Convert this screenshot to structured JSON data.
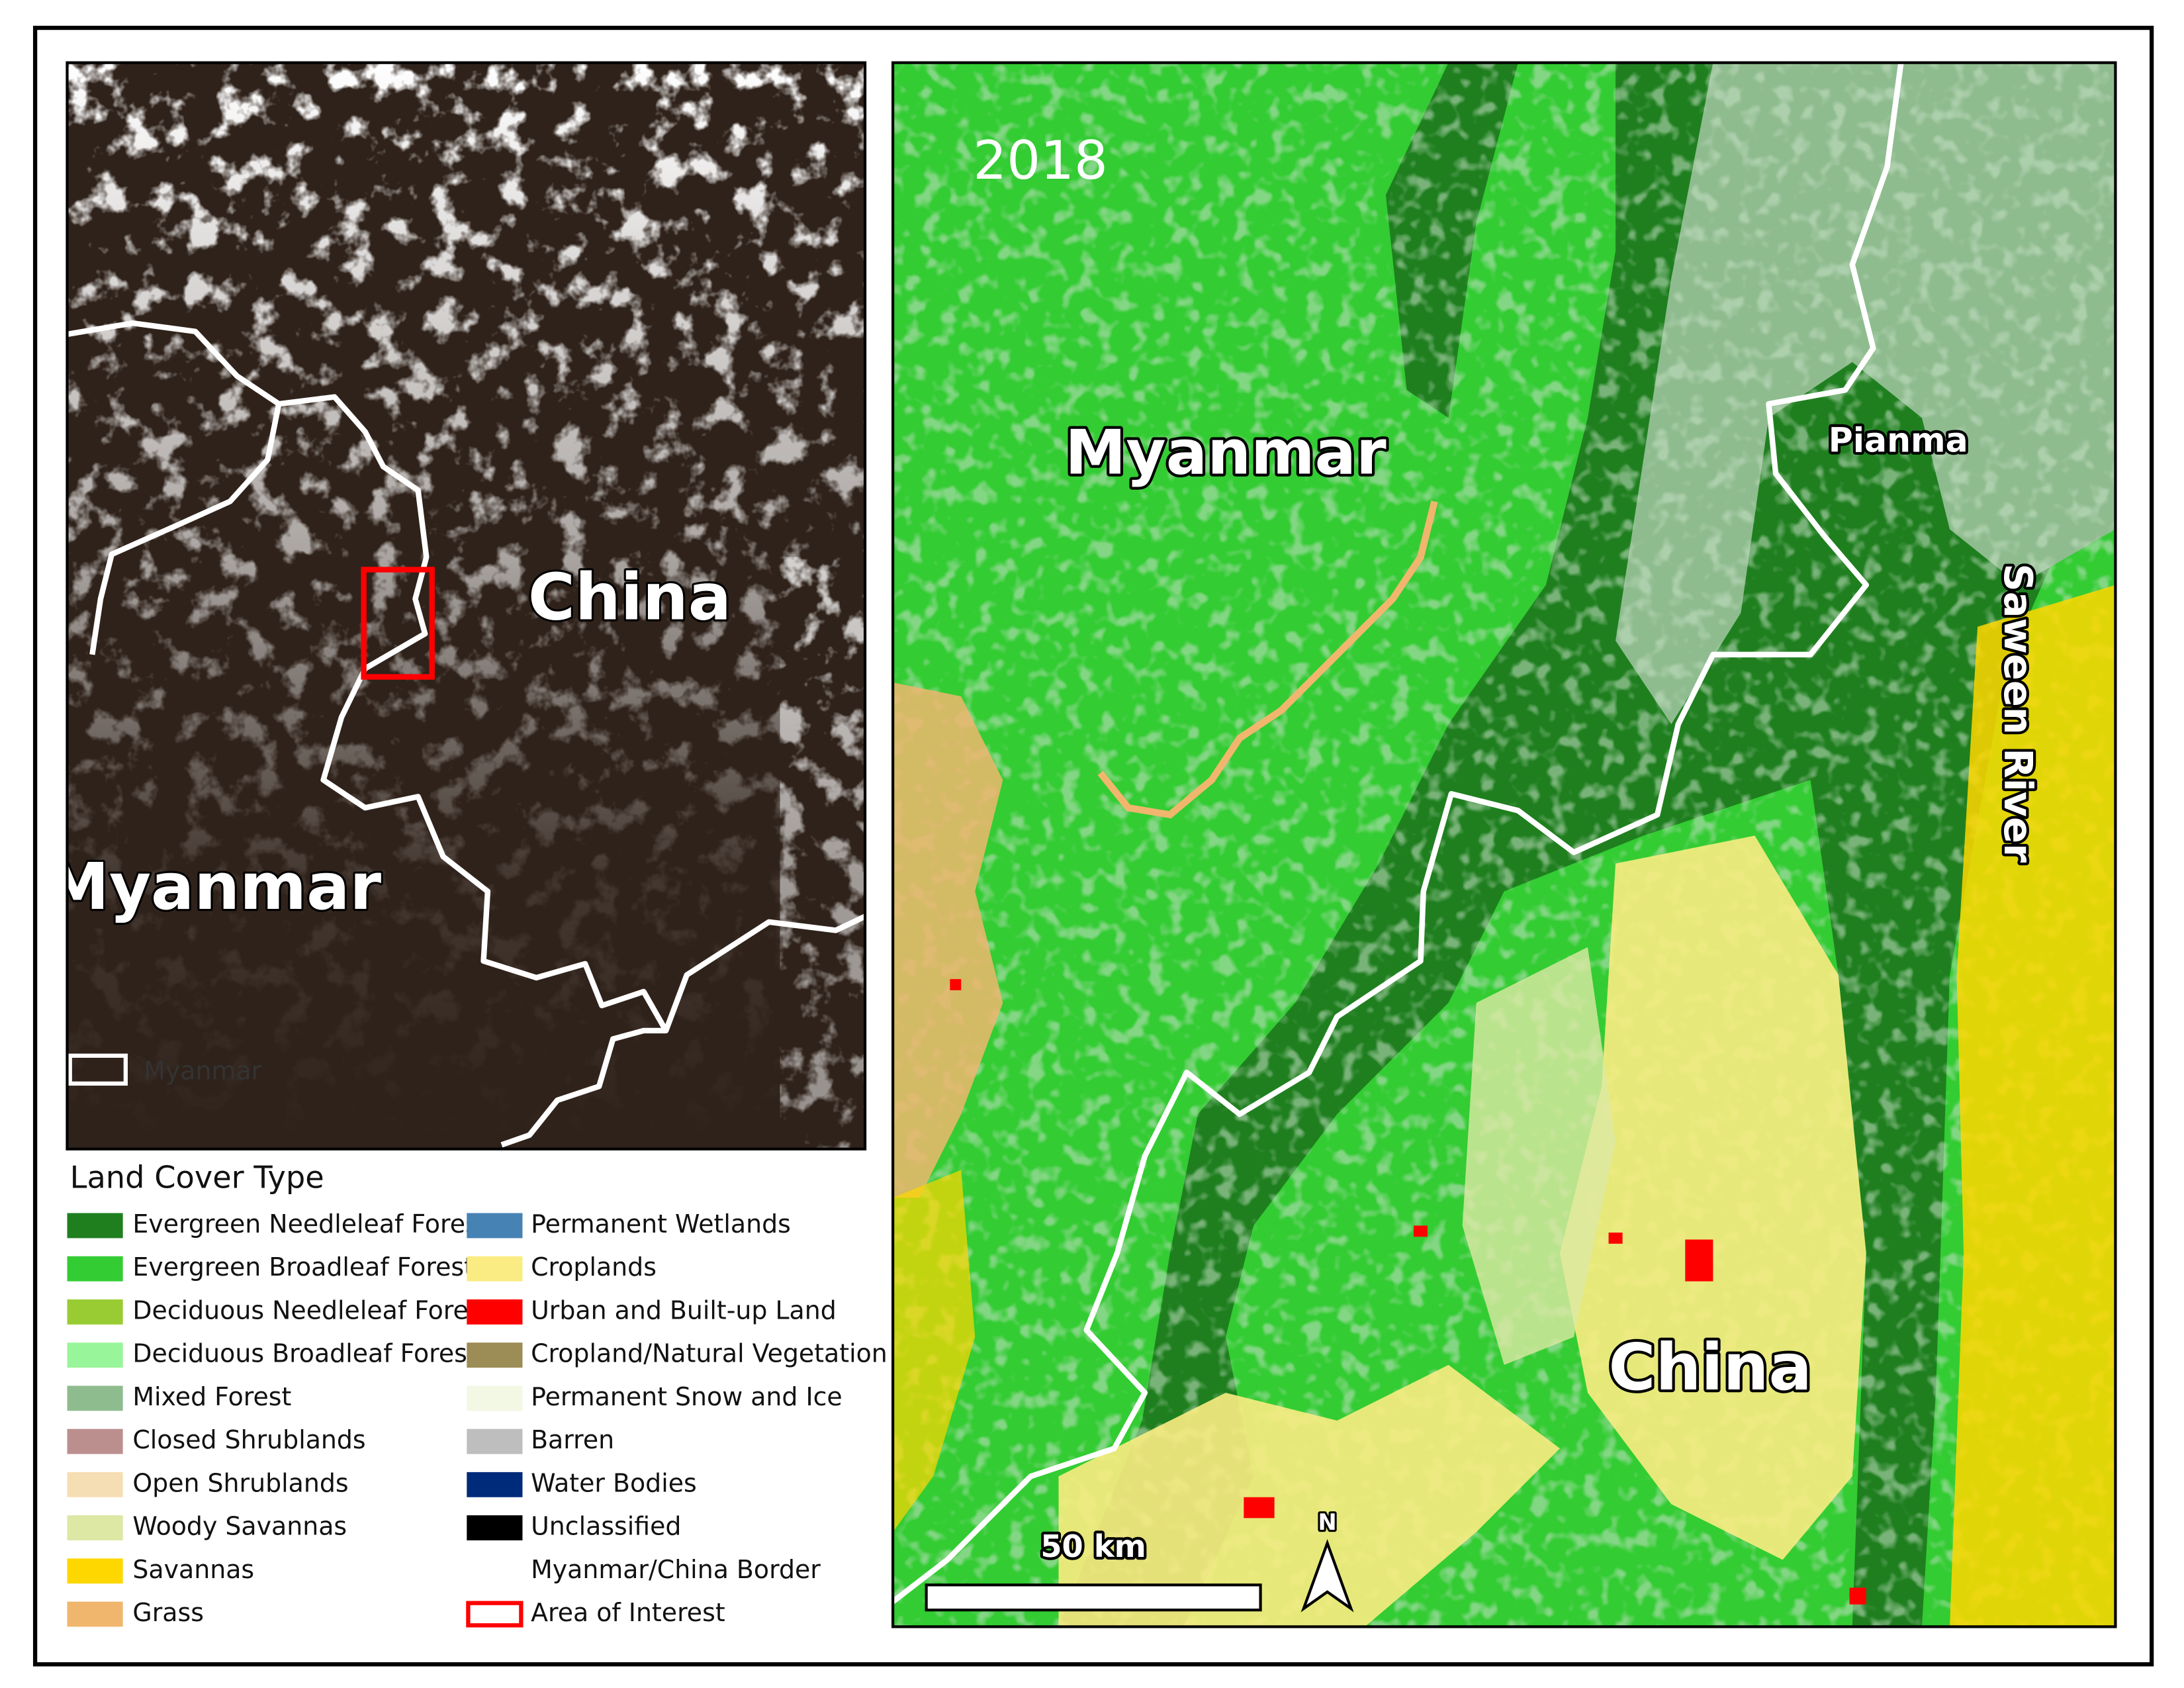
{
  "left_map": {
    "labels": {
      "country_east": "China",
      "country_west": "Myanmar"
    },
    "inset_legend": "Myanmar"
  },
  "right_map": {
    "year": "2018",
    "labels": {
      "country_west": "Myanmar",
      "town": "Pianma",
      "river": "Saween River",
      "country_east": "China"
    },
    "scale_bar": "50 km",
    "north_arrow": "N"
  },
  "legend": {
    "title": "Land Cover Type",
    "items": [
      {
        "label": "Evergreen Needleleaf Forest",
        "color": "#1f7f1f",
        "symbol": "fill"
      },
      {
        "label": "Evergreen Broadleaf Forest",
        "color": "#33cc33",
        "symbol": "fill"
      },
      {
        "label": "Deciduous Needleleaf Forest",
        "color": "#99cc33",
        "symbol": "fill"
      },
      {
        "label": "Deciduous Broadleaf Forest",
        "color": "#99f599",
        "symbol": "fill"
      },
      {
        "label": "Mixed Forest",
        "color": "#8fbc8f",
        "symbol": "fill"
      },
      {
        "label": "Closed Shrublands",
        "color": "#bc8f8f",
        "symbol": "fill"
      },
      {
        "label": "Open Shrublands",
        "color": "#f5deb3",
        "symbol": "fill"
      },
      {
        "label": "Woody Savannas",
        "color": "#dce8a4",
        "symbol": "fill"
      },
      {
        "label": "Savannas",
        "color": "#ffd700",
        "symbol": "fill"
      },
      {
        "label": "Grass",
        "color": "#f0b66e",
        "symbol": "fill"
      },
      {
        "label": "Permanent Wetlands",
        "color": "#4682b4",
        "symbol": "fill"
      },
      {
        "label": "Croplands",
        "color": "#faec82",
        "symbol": "fill"
      },
      {
        "label": "Urban and Built-up Land",
        "color": "#ff0000",
        "symbol": "fill"
      },
      {
        "label": "Cropland/Natural Vegetation",
        "color": "#9c8c55",
        "symbol": "fill"
      },
      {
        "label": "Permanent Snow and Ice",
        "color": "#f2f8e4",
        "symbol": "fill"
      },
      {
        "label": "Barren",
        "color": "#bebebe",
        "symbol": "fill"
      },
      {
        "label": "Water Bodies",
        "color": "#002a7a",
        "symbol": "fill"
      },
      {
        "label": "Unclassified",
        "color": "#000000",
        "symbol": "fill"
      },
      {
        "label": "Myanmar/China Border",
        "color": "#ffffff",
        "symbol": "line"
      },
      {
        "label": "Area of Interest",
        "color": "#ff0000",
        "symbol": "outline"
      }
    ]
  }
}
